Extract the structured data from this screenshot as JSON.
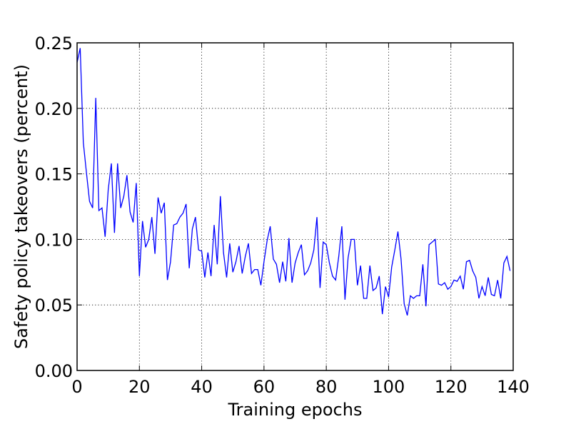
{
  "chart_data": {
    "type": "line",
    "title": "",
    "xlabel": "Training epochs",
    "ylabel": "Safety policy takeovers (percent)",
    "xlim": [
      0,
      140
    ],
    "ylim": [
      0.0,
      0.25
    ],
    "xticks": [
      0,
      20,
      40,
      60,
      80,
      100,
      120,
      140
    ],
    "xtick_labels": [
      "0",
      "20",
      "40",
      "60",
      "80",
      "100",
      "120",
      "140"
    ],
    "yticks": [
      0.0,
      0.05,
      0.1,
      0.15,
      0.2,
      0.25
    ],
    "ytick_labels": [
      "0.00",
      "0.05",
      "0.10",
      "0.15",
      "0.20",
      "0.25"
    ],
    "grid": true,
    "line_color": "#0000ff",
    "series": [
      {
        "x": [
          0,
          1,
          2,
          3,
          4,
          5,
          6,
          7,
          8,
          9,
          10,
          11,
          12,
          13,
          14,
          15,
          16,
          17,
          18,
          19,
          20,
          21,
          22,
          23,
          24,
          25,
          26,
          27,
          28,
          29,
          30,
          31,
          32,
          33,
          34,
          35,
          36,
          37,
          38,
          39,
          40,
          41,
          42,
          43,
          44,
          45,
          46,
          47,
          48,
          49,
          50,
          51,
          52,
          53,
          54,
          55,
          56,
          57,
          58,
          59,
          60,
          61,
          62,
          63,
          64,
          65,
          66,
          67,
          68,
          69,
          70,
          71,
          72,
          73,
          74,
          75,
          76,
          77,
          78,
          79,
          80,
          81,
          82,
          83,
          84,
          85,
          86,
          87,
          88,
          89,
          90,
          91,
          92,
          93,
          94,
          95,
          96,
          97,
          98,
          99,
          100,
          101,
          102,
          103,
          104,
          105,
          106,
          107,
          108,
          109,
          110,
          111,
          112,
          113,
          114,
          115,
          116,
          117,
          118,
          119,
          120,
          121,
          122,
          123,
          124,
          125,
          126,
          127,
          128,
          129,
          130,
          131,
          132,
          133,
          134,
          135,
          136,
          137,
          138,
          139
        ],
        "values": [
          0.235,
          0.246,
          0.174,
          0.151,
          0.129,
          0.124,
          0.208,
          0.122,
          0.124,
          0.102,
          0.138,
          0.158,
          0.105,
          0.158,
          0.124,
          0.133,
          0.149,
          0.121,
          0.113,
          0.143,
          0.072,
          0.114,
          0.094,
          0.1,
          0.117,
          0.089,
          0.132,
          0.12,
          0.128,
          0.069,
          0.083,
          0.111,
          0.112,
          0.117,
          0.12,
          0.127,
          0.078,
          0.108,
          0.117,
          0.092,
          0.091,
          0.071,
          0.09,
          0.072,
          0.111,
          0.081,
          0.133,
          0.09,
          0.071,
          0.097,
          0.075,
          0.083,
          0.095,
          0.074,
          0.087,
          0.097,
          0.074,
          0.077,
          0.077,
          0.065,
          0.083,
          0.099,
          0.11,
          0.085,
          0.081,
          0.067,
          0.083,
          0.068,
          0.101,
          0.067,
          0.082,
          0.09,
          0.096,
          0.073,
          0.076,
          0.082,
          0.092,
          0.117,
          0.063,
          0.098,
          0.096,
          0.082,
          0.072,
          0.069,
          0.087,
          0.11,
          0.054,
          0.086,
          0.1,
          0.1,
          0.065,
          0.08,
          0.055,
          0.055,
          0.08,
          0.061,
          0.063,
          0.072,
          0.043,
          0.064,
          0.056,
          0.079,
          0.092,
          0.106,
          0.085,
          0.051,
          0.042,
          0.057,
          0.055,
          0.057,
          0.057,
          0.081,
          0.049,
          0.096,
          0.098,
          0.1,
          0.066,
          0.065,
          0.067,
          0.062,
          0.064,
          0.069,
          0.068,
          0.072,
          0.062,
          0.083,
          0.084,
          0.076,
          0.071,
          0.055,
          0.064,
          0.057,
          0.071,
          0.058,
          0.057,
          0.069,
          0.055,
          0.082,
          0.087,
          0.076
        ]
      }
    ]
  }
}
